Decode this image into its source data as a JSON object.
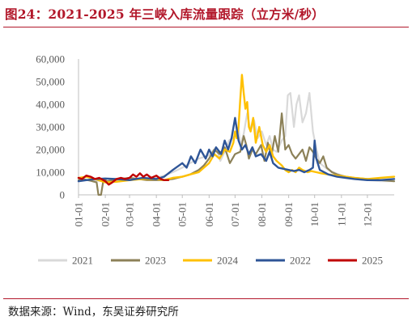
{
  "header": {
    "title": "图24：2021-2025 年三峡入库流量跟踪（立方米/秒）"
  },
  "footer": {
    "source": "数据来源：Wind，东吴证券研究所"
  },
  "chart_data": {
    "type": "line",
    "title": "图24：2021-2025 年三峡入库流量跟踪（立方米/秒）",
    "xlabel": "",
    "ylabel": "",
    "ylim": [
      0,
      60000
    ],
    "yticks": [
      "0",
      "10,000",
      "20,000",
      "30,000",
      "40,000",
      "50,000",
      "60,000"
    ],
    "ytick_values": [
      0,
      10000,
      20000,
      30000,
      40000,
      50000,
      60000
    ],
    "xticks": [
      "01-01",
      "02-01",
      "03-01",
      "04-01",
      "05-01",
      "06-01",
      "07-01",
      "08-01",
      "09-01",
      "10-01",
      "11-01",
      "12-01"
    ],
    "xtick_days": [
      1,
      32,
      60,
      91,
      121,
      152,
      182,
      213,
      244,
      274,
      305,
      335
    ],
    "xlim_days": [
      1,
      366
    ],
    "grid": false,
    "legend": "bottom",
    "series": [
      {
        "name": "2021",
        "color": "#d9d9d9",
        "width": 2.2,
        "x": [
          1,
          10,
          20,
          32,
          45,
          60,
          75,
          91,
          100,
          110,
          121,
          130,
          140,
          152,
          160,
          165,
          170,
          175,
          182,
          186,
          188,
          192,
          196,
          200,
          204,
          208,
          213,
          218,
          222,
          226,
          230,
          236,
          240,
          243,
          246,
          250,
          253,
          256,
          260,
          264,
          268,
          272,
          275,
          280,
          290,
          305,
          320,
          335,
          350,
          366
        ],
        "y": [
          6500,
          6600,
          6300,
          6000,
          6200,
          6500,
          7000,
          7500,
          8500,
          10000,
          12000,
          14000,
          16000,
          17500,
          21000,
          15000,
          19000,
          24000,
          26000,
          30000,
          22000,
          27000,
          36000,
          28000,
          33000,
          25000,
          28000,
          22000,
          26000,
          20000,
          19000,
          24000,
          26000,
          44000,
          45000,
          30000,
          40000,
          44000,
          32000,
          36000,
          45000,
          28000,
          22000,
          14000,
          11000,
          8500,
          7000,
          6500,
          6000,
          6000
        ]
      },
      {
        "name": "2023",
        "color": "#8c8158",
        "width": 2.2,
        "x": [
          1,
          8,
          15,
          22,
          24,
          27,
          30,
          34,
          40,
          50,
          60,
          70,
          80,
          91,
          100,
          110,
          121,
          130,
          140,
          146,
          152,
          158,
          164,
          170,
          176,
          182,
          188,
          192,
          195,
          198,
          202,
          206,
          212,
          216,
          220,
          224,
          228,
          232,
          236,
          240,
          244,
          248,
          252,
          256,
          260,
          264,
          268,
          272,
          276,
          280,
          284,
          288,
          294,
          300,
          310,
          320,
          335,
          350,
          366
        ],
        "y": [
          6500,
          6800,
          6200,
          5500,
          0,
          0,
          7000,
          6000,
          6500,
          7000,
          7500,
          7000,
          6500,
          6500,
          6500,
          7000,
          8000,
          9000,
          11000,
          13000,
          16000,
          20000,
          18000,
          21000,
          14000,
          18000,
          19000,
          26000,
          22000,
          16000,
          20000,
          18000,
          22000,
          15000,
          23000,
          17000,
          26000,
          19000,
          36000,
          20000,
          22000,
          18000,
          16000,
          18000,
          20000,
          15000,
          21000,
          19000,
          16000,
          14000,
          17000,
          12000,
          10000,
          9000,
          8000,
          7500,
          7000,
          6500,
          6000
        ]
      },
      {
        "name": "2024",
        "color": "#ffc000",
        "width": 2.4,
        "x": [
          1,
          10,
          20,
          32,
          45,
          60,
          75,
          91,
          100,
          110,
          121,
          130,
          140,
          146,
          152,
          158,
          164,
          170,
          176,
          180,
          182,
          184,
          186,
          188,
          190,
          192,
          194,
          196,
          198,
          200,
          203,
          206,
          210,
          214,
          218,
          222,
          226,
          230,
          236,
          240,
          244,
          248,
          252,
          256,
          260,
          266,
          270,
          276,
          282,
          290,
          300,
          310,
          320,
          335,
          350,
          366
        ],
        "y": [
          7500,
          8000,
          7000,
          5500,
          5800,
          6500,
          7000,
          7000,
          6500,
          7500,
          8000,
          9000,
          10000,
          12000,
          14000,
          18000,
          16000,
          20000,
          19000,
          23000,
          28000,
          25000,
          30000,
          42000,
          53000,
          45000,
          38000,
          41000,
          30000,
          28000,
          34000,
          23000,
          30000,
          22000,
          19000,
          22000,
          17000,
          15000,
          13000,
          11000,
          10000,
          11000,
          10000,
          12000,
          11000,
          10000,
          10500,
          10000,
          9500,
          9000,
          8500,
          8000,
          7500,
          7000,
          7500,
          8000
        ]
      },
      {
        "name": "2022",
        "color": "#2e5597",
        "width": 2.4,
        "x": [
          1,
          10,
          20,
          32,
          45,
          60,
          75,
          91,
          100,
          110,
          121,
          126,
          131,
          136,
          142,
          148,
          152,
          156,
          160,
          166,
          170,
          174,
          178,
          182,
          186,
          190,
          194,
          198,
          202,
          206,
          212,
          218,
          222,
          226,
          232,
          238,
          244,
          250,
          256,
          262,
          268,
          272,
          274,
          276,
          280,
          290,
          300,
          310,
          320,
          335,
          350,
          366
        ],
        "y": [
          6000,
          6500,
          7000,
          7200,
          7000,
          6500,
          7500,
          7000,
          8000,
          11000,
          14000,
          12000,
          17000,
          14000,
          20000,
          16000,
          20000,
          17000,
          21000,
          18000,
          24000,
          20000,
          25000,
          34000,
          24000,
          20000,
          22000,
          18000,
          21000,
          17000,
          18000,
          15000,
          19000,
          14000,
          12000,
          11500,
          11000,
          10500,
          11000,
          10000,
          11000,
          12000,
          24000,
          16000,
          11000,
          9000,
          8000,
          7500,
          7000,
          6500,
          6500,
          7000
        ]
      },
      {
        "name": "2025",
        "color": "#c00000",
        "width": 2.4,
        "x": [
          1,
          5,
          10,
          15,
          20,
          25,
          32,
          36,
          40,
          45,
          50,
          55,
          60,
          64,
          68,
          72,
          76,
          80,
          85,
          91,
          96,
          100,
          105
        ],
        "y": [
          7500,
          7000,
          8500,
          8000,
          7000,
          7500,
          6000,
          4500,
          5500,
          7000,
          7500,
          7000,
          7500,
          9000,
          8000,
          9500,
          8000,
          9000,
          7500,
          8500,
          7000,
          6500,
          6500
        ]
      }
    ],
    "legend_order": [
      "2021",
      "2023",
      "2024",
      "2022",
      "2025"
    ]
  }
}
